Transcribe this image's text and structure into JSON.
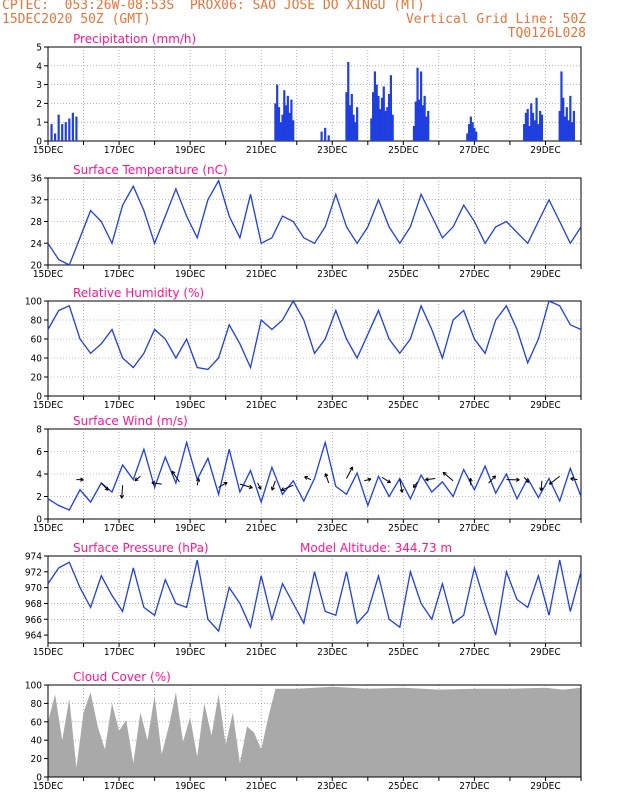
{
  "header": {
    "line1_left": "CPTEC:  053:26W-08:53S  PROX06: SAO JOSE DO XINGU (MT)",
    "line2_left": "15DEC2020 50Z (GMT)",
    "line2_right": "Vertical Grid Line: 50Z",
    "line3_right": "TQ0126L028"
  },
  "colors": {
    "header": "#e8743a",
    "title": "#ff1493",
    "series": "#1f3fe0",
    "cloud": "#a9a9a9"
  },
  "x_axis": {
    "start_day": 15,
    "end_day": 30,
    "labels": [
      "15DEC",
      "17DEC",
      "19DEC",
      "21DEC",
      "23DEC",
      "25DEC",
      "27DEC",
      "29DEC"
    ],
    "label_days": [
      15,
      17,
      19,
      21,
      23,
      25,
      27,
      29
    ]
  },
  "chart_data": [
    {
      "type": "bar",
      "title": "Precipitation (mm/h)",
      "ylim": [
        0,
        5
      ],
      "yticks": [
        "0",
        "1",
        "2",
        "3",
        "4",
        "5"
      ],
      "grid": true,
      "x": [
        15.1,
        15.2,
        15.3,
        15.4,
        15.5,
        15.6,
        15.7,
        15.8,
        21.4,
        21.45,
        21.5,
        21.55,
        21.6,
        21.65,
        21.7,
        21.75,
        21.8,
        21.85,
        21.9,
        22.7,
        22.8,
        22.9,
        23.4,
        23.45,
        23.5,
        23.55,
        23.6,
        23.65,
        23.7,
        24.1,
        24.15,
        24.2,
        24.25,
        24.3,
        24.35,
        24.4,
        24.45,
        24.5,
        24.55,
        24.6,
        24.65,
        24.7,
        25.3,
        25.35,
        25.4,
        25.45,
        25.5,
        25.55,
        25.6,
        25.65,
        25.7,
        26.8,
        26.85,
        26.9,
        26.95,
        27.0,
        27.05,
        28.4,
        28.45,
        28.5,
        28.55,
        28.6,
        28.65,
        28.7,
        28.75,
        28.8,
        28.85,
        28.9,
        29.4,
        29.45,
        29.5,
        29.55,
        29.6,
        29.65,
        29.7,
        29.75,
        29.8
      ],
      "values": [
        0.9,
        0.4,
        1.4,
        0.9,
        1.0,
        1.2,
        1.5,
        1.3,
        2.0,
        3.0,
        1.8,
        1.0,
        1.4,
        2.7,
        1.9,
        2.4,
        1.5,
        2.2,
        1.1,
        0.5,
        0.7,
        0.3,
        2.6,
        4.2,
        1.9,
        2.5,
        1.4,
        1.0,
        1.8,
        1.2,
        2.6,
        3.7,
        3.0,
        2.4,
        1.7,
        2.3,
        2.9,
        1.6,
        1.8,
        2.5,
        3.5,
        1.4,
        0.8,
        2.1,
        3.9,
        2.2,
        3.7,
        1.9,
        2.4,
        1.3,
        1.6,
        0.4,
        0.9,
        1.3,
        1.0,
        0.7,
        0.5,
        0.9,
        1.5,
        1.7,
        0.8,
        2.0,
        1.5,
        1.1,
        2.3,
        0.9,
        1.6,
        1.4,
        1.6,
        3.7,
        2.3,
        1.3,
        1.8,
        1.1,
        2.4,
        1.0,
        1.6
      ]
    },
    {
      "type": "line",
      "title": "Surface Temperature (nC)",
      "ylim": [
        20,
        36
      ],
      "yticks": [
        "20",
        "24",
        "28",
        "32",
        "36"
      ],
      "grid": true,
      "x": [
        15.0,
        15.3,
        15.6,
        15.9,
        16.2,
        16.5,
        16.8,
        17.1,
        17.4,
        17.7,
        18.0,
        18.3,
        18.6,
        18.9,
        19.2,
        19.5,
        19.8,
        20.1,
        20.4,
        20.7,
        21.0,
        21.3,
        21.6,
        21.9,
        22.2,
        22.5,
        22.8,
        23.1,
        23.4,
        23.7,
        24.0,
        24.3,
        24.6,
        24.9,
        25.2,
        25.5,
        25.8,
        26.1,
        26.4,
        26.7,
        27.0,
        27.3,
        27.6,
        27.9,
        28.2,
        28.5,
        28.8,
        29.1,
        29.4,
        29.7,
        30.0
      ],
      "values": [
        24,
        21,
        20,
        25,
        30,
        28,
        24,
        31,
        34.5,
        30,
        24,
        29,
        34,
        29,
        25,
        32,
        35.5,
        29,
        25,
        33,
        24,
        25,
        29,
        28,
        25,
        24,
        27,
        33,
        27,
        24,
        27,
        32,
        27,
        24,
        27,
        33,
        29,
        25,
        27,
        31,
        28,
        24,
        27,
        28,
        26,
        24,
        28,
        32,
        28,
        24,
        27
      ]
    },
    {
      "type": "line",
      "title": "Relative Humidity (%)",
      "ylim": [
        0,
        100
      ],
      "yticks": [
        "0",
        "20",
        "40",
        "60",
        "80",
        "100"
      ],
      "grid": true,
      "x": [
        15.0,
        15.3,
        15.6,
        15.9,
        16.2,
        16.5,
        16.8,
        17.1,
        17.4,
        17.7,
        18.0,
        18.3,
        18.6,
        18.9,
        19.2,
        19.5,
        19.8,
        20.1,
        20.4,
        20.7,
        21.0,
        21.3,
        21.6,
        21.9,
        22.2,
        22.5,
        22.8,
        23.1,
        23.4,
        23.7,
        24.0,
        24.3,
        24.6,
        24.9,
        25.2,
        25.5,
        25.8,
        26.1,
        26.4,
        26.7,
        27.0,
        27.3,
        27.6,
        27.9,
        28.2,
        28.5,
        28.8,
        29.1,
        29.4,
        29.7,
        30.0
      ],
      "values": [
        70,
        90,
        95,
        60,
        45,
        55,
        70,
        40,
        30,
        45,
        70,
        60,
        40,
        60,
        30,
        28,
        40,
        75,
        55,
        30,
        80,
        70,
        80,
        100,
        80,
        45,
        60,
        90,
        60,
        40,
        65,
        90,
        60,
        45,
        60,
        95,
        70,
        40,
        80,
        90,
        60,
        45,
        80,
        95,
        70,
        35,
        60,
        100,
        95,
        75,
        70
      ]
    },
    {
      "type": "line",
      "title": "Surface Wind (m/s)",
      "ylim": [
        0,
        8
      ],
      "yticks": [
        "0",
        "2",
        "4",
        "6",
        "8"
      ],
      "grid": true,
      "x": [
        15.0,
        15.3,
        15.6,
        15.9,
        16.2,
        16.5,
        16.8,
        17.1,
        17.4,
        17.7,
        18.0,
        18.3,
        18.6,
        18.9,
        19.2,
        19.5,
        19.8,
        20.1,
        20.4,
        20.7,
        21.0,
        21.3,
        21.6,
        21.9,
        22.2,
        22.5,
        22.8,
        23.1,
        23.4,
        23.7,
        24.0,
        24.3,
        24.6,
        24.9,
        25.2,
        25.5,
        25.8,
        26.1,
        26.4,
        26.7,
        27.0,
        27.3,
        27.6,
        27.9,
        28.2,
        28.5,
        28.8,
        29.1,
        29.4,
        29.7,
        30.0
      ],
      "values": [
        1.8,
        1.2,
        0.8,
        2.6,
        1.5,
        3.2,
        2.4,
        4.8,
        3.5,
        6.2,
        2.8,
        5.5,
        3.2,
        6.8,
        3.5,
        5.4,
        2.2,
        6.2,
        2.4,
        4.3,
        1.5,
        4.6,
        2.2,
        3.4,
        1.6,
        3.6,
        6.8,
        2.9,
        2.2,
        4.1,
        1.2,
        3.8,
        2.0,
        3.6,
        1.8,
        3.9,
        2.4,
        3.3,
        2.0,
        4.4,
        2.6,
        4.7,
        2.3,
        4.0,
        1.8,
        3.6,
        1.9,
        3.6,
        1.6,
        4.5,
        2.0
      ],
      "arrows_x": [
        15.8,
        16.5,
        17.1,
        17.6,
        18.2,
        18.7,
        19.2,
        19.8,
        20.4,
        20.9,
        21.4,
        21.9,
        22.4,
        22.9,
        23.4,
        23.9,
        24.4,
        24.9,
        25.4,
        25.9,
        26.4,
        26.9,
        27.4,
        27.9,
        28.4,
        28.9,
        29.4,
        29.9
      ],
      "arrows_y": [
        3.5,
        3.2,
        3.0,
        3.8,
        3.1,
        3.3,
        3.0,
        2.8,
        3.1,
        3.2,
        3.4,
        3.0,
        3.5,
        3.2,
        3.6,
        3.4,
        3.7,
        3.5,
        3.3,
        3.6,
        3.4,
        3.0,
        3.2,
        3.5,
        3.7,
        3.4,
        3.8,
        3.5
      ]
    },
    {
      "type": "line",
      "title": "Surface Pressure (hPa)",
      "annotation": "Model Altitude: 344.73 m",
      "ylim": [
        963,
        974
      ],
      "yticks": [
        "964",
        "966",
        "968",
        "970",
        "972",
        "974"
      ],
      "grid": true,
      "x": [
        15.0,
        15.3,
        15.6,
        15.9,
        16.2,
        16.5,
        16.8,
        17.1,
        17.4,
        17.7,
        18.0,
        18.3,
        18.6,
        18.9,
        19.2,
        19.5,
        19.8,
        20.1,
        20.4,
        20.7,
        21.0,
        21.3,
        21.6,
        21.9,
        22.2,
        22.5,
        22.8,
        23.1,
        23.4,
        23.7,
        24.0,
        24.3,
        24.6,
        24.9,
        25.2,
        25.5,
        25.8,
        26.1,
        26.4,
        26.7,
        27.0,
        27.3,
        27.6,
        27.9,
        28.2,
        28.5,
        28.8,
        29.1,
        29.4,
        29.7,
        30.0
      ],
      "values": [
        970.5,
        972.5,
        973.2,
        970.0,
        967.5,
        971.5,
        969.0,
        967.0,
        972.5,
        967.5,
        966.5,
        971.0,
        968.0,
        967.5,
        973.5,
        966.0,
        964.5,
        970.0,
        968.0,
        965.0,
        971.5,
        966.0,
        970.5,
        968.0,
        965.5,
        972.0,
        967.0,
        966.5,
        972.0,
        965.5,
        967.0,
        971.5,
        966.0,
        965.0,
        972.0,
        968.0,
        966.0,
        970.5,
        965.5,
        966.5,
        972.5,
        968.0,
        964.0,
        972.0,
        968.5,
        967.5,
        971.5,
        966.5,
        973.5,
        967.0,
        972.0
      ]
    },
    {
      "type": "area",
      "title": "Cloud Cover (%)",
      "ylim": [
        0,
        100
      ],
      "yticks": [
        "0",
        "20",
        "40",
        "60",
        "80",
        "100"
      ],
      "grid": true,
      "x": [
        15.0,
        15.2,
        15.4,
        15.6,
        15.8,
        16.0,
        16.2,
        16.4,
        16.6,
        16.8,
        17.0,
        17.2,
        17.4,
        17.6,
        17.8,
        18.0,
        18.2,
        18.4,
        18.6,
        18.8,
        19.0,
        19.2,
        19.4,
        19.6,
        19.8,
        20.0,
        20.2,
        20.4,
        20.6,
        20.8,
        21.0,
        21.2,
        21.4,
        22.0,
        23.0,
        24.0,
        25.0,
        26.0,
        27.0,
        28.0,
        29.0,
        29.5,
        30.0
      ],
      "values": [
        60,
        90,
        40,
        85,
        10,
        70,
        92,
        55,
        30,
        80,
        50,
        62,
        15,
        70,
        40,
        88,
        25,
        55,
        92,
        38,
        65,
        22,
        80,
        45,
        90,
        35,
        70,
        15,
        55,
        48,
        30,
        65,
        96,
        96,
        98,
        96,
        97,
        95,
        96,
        96,
        97,
        95,
        97
      ]
    }
  ]
}
